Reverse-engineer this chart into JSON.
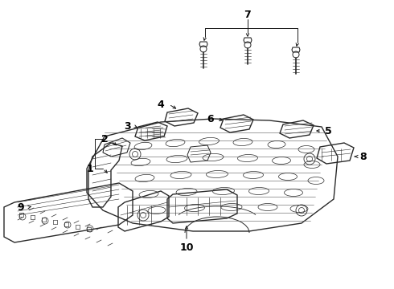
{
  "bg_color": "#ffffff",
  "line_color": "#2a2a2a",
  "label_color": "#000000",
  "lw_main": 1.0,
  "lw_detail": 0.55,
  "lw_callout": 0.7,
  "font_size": 8.0
}
